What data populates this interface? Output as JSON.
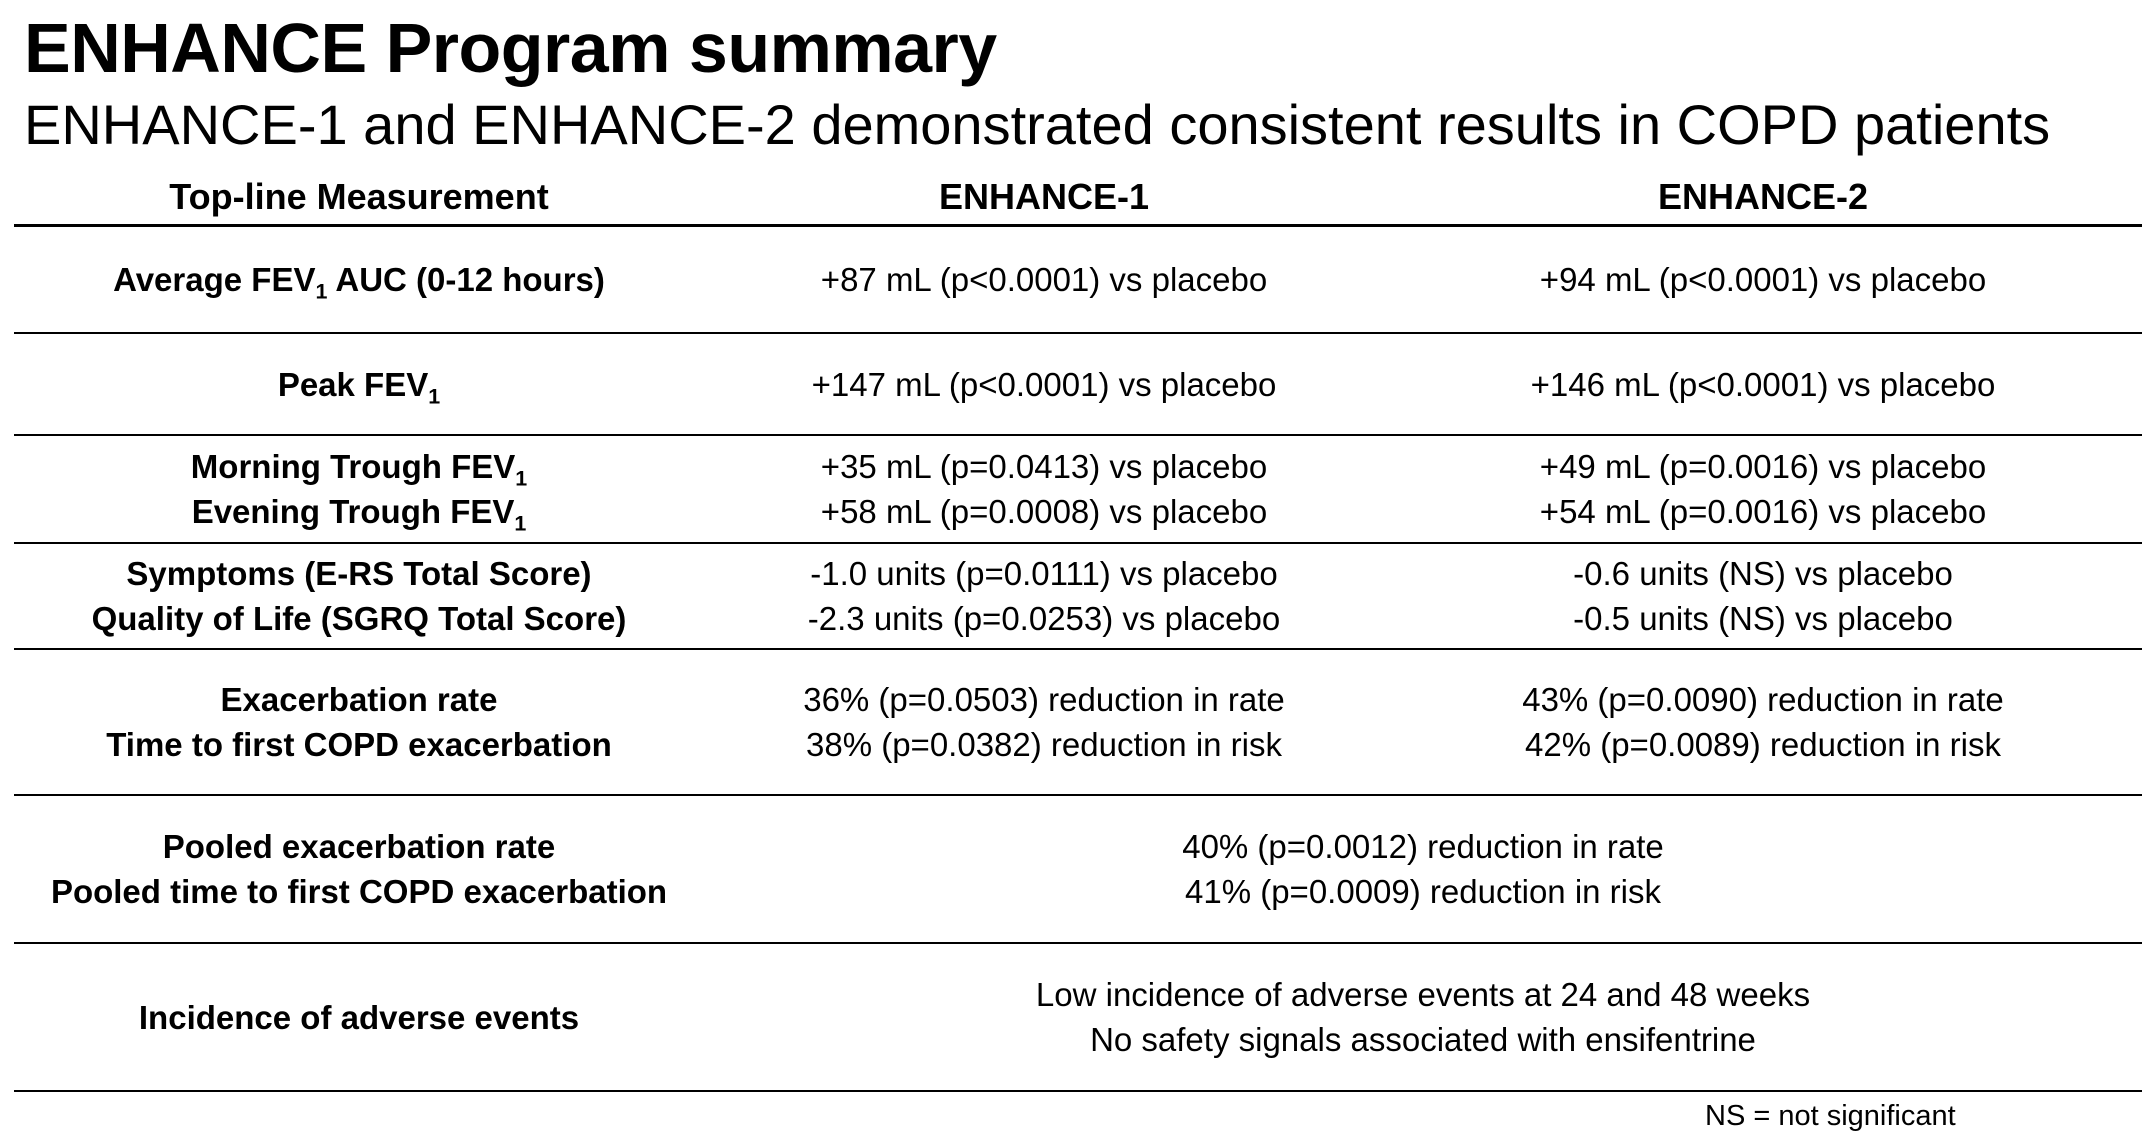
{
  "title": "ENHANCE Program summary",
  "subtitle": "ENHANCE-1 and ENHANCE-2 demonstrated consistent results in COPD patients",
  "headers": {
    "measurement": "Top-line Measurement",
    "enhance1": "ENHANCE-1",
    "enhance2": "ENHANCE-2"
  },
  "rows": [
    {
      "measures": [
        "Average FEV",
        "AUC (0-12 hours)"
      ],
      "measure_sub": "1",
      "enhance1": "+87 mL (p<0.0001) vs placebo",
      "enhance2": "+94 mL (p<0.0001) vs placebo"
    },
    {
      "measure": "Peak FEV",
      "measure_sub": "1",
      "enhance1": "+147 mL (p<0.0001) vs placebo",
      "enhance2": "+146 mL (p<0.0001) vs placebo"
    },
    {
      "measures": [
        "Morning Trough FEV",
        "Evening Trough FEV"
      ],
      "measure_sub": "1",
      "enhance1": [
        "+35 mL (p=0.0413) vs placebo",
        "+58 mL (p=0.0008) vs placebo"
      ],
      "enhance2": [
        "+49 mL (p=0.0016) vs placebo",
        "+54 mL (p=0.0016) vs placebo"
      ]
    },
    {
      "measures": [
        "Symptoms (E-RS Total Score)",
        "Quality of Life (SGRQ Total Score)"
      ],
      "enhance1": [
        "-1.0 units (p=0.0111) vs placebo",
        "-2.3 units (p=0.0253) vs placebo"
      ],
      "enhance2": [
        "-0.6 units (NS) vs placebo",
        "-0.5 units (NS) vs placebo"
      ]
    },
    {
      "measures": [
        "Exacerbation rate",
        "Time to first COPD exacerbation"
      ],
      "enhance1": [
        "36% (p=0.0503) reduction in rate",
        "38% (p=0.0382) reduction in risk"
      ],
      "enhance2": [
        "43% (p=0.0090) reduction in rate",
        "42% (p=0.0089) reduction in risk"
      ]
    },
    {
      "measures": [
        "Pooled exacerbation rate",
        "Pooled time to first COPD exacerbation"
      ],
      "pooled": [
        "40% (p=0.0012) reduction in rate",
        "41% (p=0.0009) reduction in risk"
      ]
    },
    {
      "measure": "Incidence of adverse events",
      "pooled": [
        "Low incidence of adverse events at 24 and 48 weeks",
        "No safety signals associated with ensifentrine"
      ]
    }
  ],
  "footnote": "NS = not significant"
}
